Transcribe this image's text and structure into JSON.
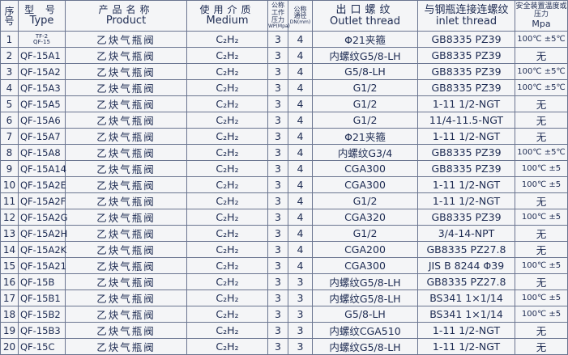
{
  "header": {
    "seq_zh": "序号",
    "type_zh": "型 号",
    "type_en": "Type",
    "product_zh": "产品名称",
    "product_en": "Product",
    "medium_zh": "使用介质",
    "medium_en": "Medium",
    "wp_zh": "公称工作压力",
    "wp_en": "WP(Mpa)",
    "dn_zh": "公称通径",
    "dn_en": "DN(mm)",
    "outlet_zh": "出口螺纹",
    "outlet_en": "Outlet thread",
    "inlet_zh": "与钢瓶连接连螺纹",
    "inlet_en": "inlet thread",
    "safety_zh": "安全装置温度或压力",
    "safety_en": "Mpa"
  },
  "rows": [
    {
      "seq": "1",
      "type": "TF-2\nQF-15",
      "product": "乙炔气瓶阀",
      "medium": "C₂H₂",
      "wp": "3",
      "dn": "4",
      "outlet": "Φ21夹箍",
      "inlet": "GB8335  PZ39",
      "safety": "100℃ ±5℃"
    },
    {
      "seq": "2",
      "type": "QF-15A1",
      "product": "乙炔气瓶阀",
      "medium": "C₂H₂",
      "wp": "3",
      "dn": "4",
      "outlet": "内螺纹G5/8-LH",
      "inlet": "GB8335  PZ39",
      "safety": "无"
    },
    {
      "seq": "3",
      "type": "QF-15A2",
      "product": "乙炔气瓶阀",
      "medium": "C₂H₂",
      "wp": "3",
      "dn": "4",
      "outlet": "G5/8-LH",
      "inlet": "GB8335  PZ39",
      "safety": "100℃ ±5℃"
    },
    {
      "seq": "4",
      "type": "QF-15A3",
      "product": "乙炔气瓶阀",
      "medium": "C₂H₂",
      "wp": "3",
      "dn": "4",
      "outlet": "G1/2",
      "inlet": "GB8335  PZ39",
      "safety": "100℃ ±5℃"
    },
    {
      "seq": "5",
      "type": "QF-15A5",
      "product": "乙炔气瓶阀",
      "medium": "C₂H₂",
      "wp": "3",
      "dn": "4",
      "outlet": "G1/2",
      "inlet": "1-11 1/2-NGT",
      "safety": "无"
    },
    {
      "seq": "6",
      "type": "QF-15A6",
      "product": "乙炔气瓶阀",
      "medium": "C₂H₂",
      "wp": "3",
      "dn": "4",
      "outlet": "G1/2",
      "inlet": "11/4-11.5-NGT",
      "safety": "无"
    },
    {
      "seq": "7",
      "type": "QF-15A7",
      "product": "乙炔气瓶阀",
      "medium": "C₂H₂",
      "wp": "3",
      "dn": "4",
      "outlet": "Φ21夹箍",
      "inlet": "1-11 1/2-NGT",
      "safety": "无"
    },
    {
      "seq": "8",
      "type": "QF-15A8",
      "product": "乙炔气瓶阀",
      "medium": "C₂H₂",
      "wp": "3",
      "dn": "4",
      "outlet": "内螺纹G3/4",
      "inlet": "GB8335  PZ39",
      "safety": "100℃ ±5℃"
    },
    {
      "seq": "9",
      "type": "QF-15A14",
      "product": "乙炔气瓶阀",
      "medium": "C₂H₂",
      "wp": "3",
      "dn": "4",
      "outlet": "CGA300",
      "inlet": "GB8335  PZ39",
      "safety": "100℃ ±5"
    },
    {
      "seq": "10",
      "type": "QF-15A2E",
      "product": "乙炔气瓶阀",
      "medium": "C₂H₂",
      "wp": "3",
      "dn": "4",
      "outlet": "CGA300",
      "inlet": "1-11 1/2-NGT",
      "safety": "100℃ ±5"
    },
    {
      "seq": "11",
      "type": "QF-15A2F",
      "product": "乙炔气瓶阀",
      "medium": "C₂H₂",
      "wp": "3",
      "dn": "4",
      "outlet": "G1/2",
      "inlet": "1-11 1/2-NGT",
      "safety": "无"
    },
    {
      "seq": "12",
      "type": "QF-15A2G",
      "product": "乙炔气瓶阀",
      "medium": "C₂H₂",
      "wp": "3",
      "dn": "4",
      "outlet": "CGA320",
      "inlet": "GB8335  PZ39",
      "safety": "100℃ ±5"
    },
    {
      "seq": "13",
      "type": "QF-15A2H",
      "product": "乙炔气瓶阀",
      "medium": "C₂H₂",
      "wp": "3",
      "dn": "4",
      "outlet": "G1/2",
      "inlet": "3/4-14-NPT",
      "safety": "无"
    },
    {
      "seq": "14",
      "type": "QF-15A2K",
      "product": "乙炔气瓶阀",
      "medium": "C₂H₂",
      "wp": "3",
      "dn": "4",
      "outlet": "CGA200",
      "inlet": "GB8335  PZ27.8",
      "safety": "无"
    },
    {
      "seq": "15",
      "type": "QF-15A21",
      "product": "乙炔气瓶阀",
      "medium": "C₂H₂",
      "wp": "3",
      "dn": "4",
      "outlet": "CGA300",
      "inlet": "JIS B 8244 Φ39",
      "safety": "100℃ ±5"
    },
    {
      "seq": "16",
      "type": "QF-15B",
      "product": "乙炔气瓶阀",
      "medium": "C₂H₂",
      "wp": "3",
      "dn": "3",
      "outlet": "内螺纹G5/8-LH",
      "inlet": "GB8335  PZ27.8",
      "safety": "无"
    },
    {
      "seq": "17",
      "type": "QF-15B1",
      "product": "乙炔气瓶阀",
      "medium": "C₂H₂",
      "wp": "3",
      "dn": "3",
      "outlet": "内螺纹G5/8-LH",
      "inlet": "BS341 1×1/14",
      "safety": "100℃ ±5"
    },
    {
      "seq": "18",
      "type": "QF-15B2",
      "product": "乙炔气瓶阀",
      "medium": "C₂H₂",
      "wp": "3",
      "dn": "3",
      "outlet": "G5/8-LH",
      "inlet": "BS341 1×1/14",
      "safety": "100℃ ±5"
    },
    {
      "seq": "19",
      "type": "QF-15B3",
      "product": "乙炔气瓶阀",
      "medium": "C₂H₂",
      "wp": "3",
      "dn": "3",
      "outlet": "内螺纹CGA510",
      "inlet": "1-11 1/2-NGT",
      "safety": "无"
    },
    {
      "seq": "20",
      "type": "QF-15C",
      "product": "乙炔气瓶阀",
      "medium": "C₂H₂",
      "wp": "3",
      "dn": "3",
      "outlet": "内螺纹G5/8-LH",
      "inlet": "1-11 1/2-NGT",
      "safety": "无"
    }
  ]
}
